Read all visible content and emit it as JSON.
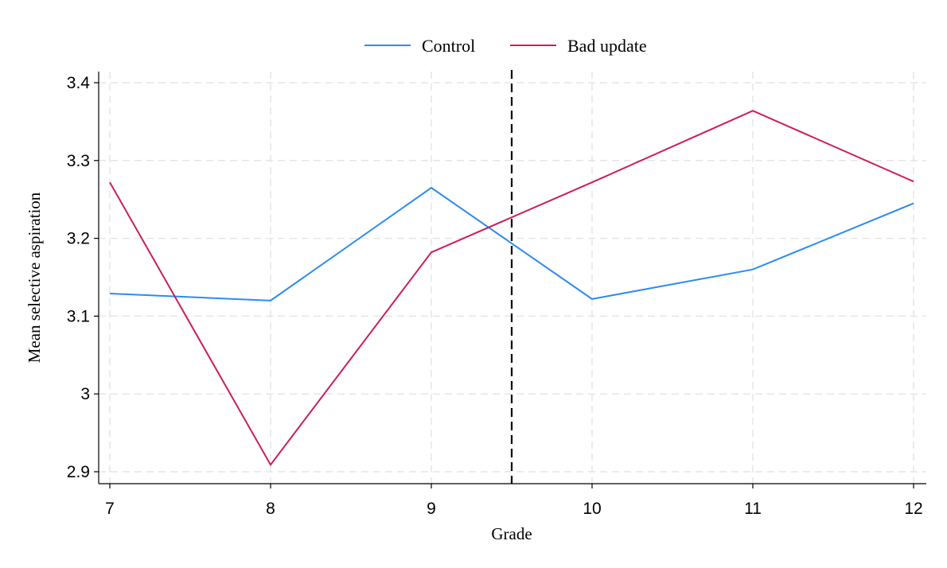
{
  "chart_data": {
    "type": "line",
    "title": "",
    "xlabel": "Grade",
    "ylabel": "Mean selective aspiration",
    "x": [
      7,
      8,
      9,
      10,
      11,
      12
    ],
    "x_ticks": [
      "7",
      "8",
      "9",
      "10",
      "11",
      "12"
    ],
    "xlim": [
      7,
      12
    ],
    "y_ticks": [
      "2.9",
      "3",
      "3.1",
      "3.2",
      "3.3",
      "3.4"
    ],
    "ylim": [
      2.9,
      3.4
    ],
    "grid": true,
    "legend_position": "top-center",
    "reference_line": {
      "x": 9.5,
      "style": "dashed",
      "color": "#000000"
    },
    "series": [
      {
        "name": "Control",
        "color": "#2b8cee",
        "values": [
          3.129,
          3.12,
          3.265,
          3.122,
          3.16,
          3.245
        ]
      },
      {
        "name": "Bad update",
        "color": "#cc1f54",
        "values": [
          3.272,
          2.909,
          3.182,
          3.272,
          3.364,
          3.273
        ]
      }
    ]
  }
}
